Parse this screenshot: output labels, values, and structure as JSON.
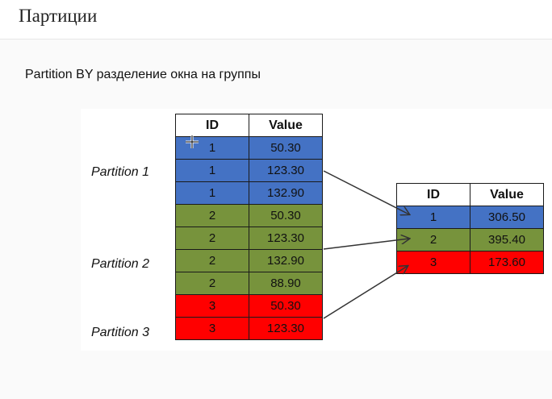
{
  "header": {
    "title": "Партиции"
  },
  "subtitle": "Partition BY разделение окна на группы",
  "partition_labels": [
    "Partition 1",
    "Partition 2",
    "Partition 3"
  ],
  "colors": {
    "partition1": "#4472c4",
    "partition2": "#77933c",
    "partition3": "#ff0000"
  },
  "left_table": {
    "headers": [
      "ID",
      "Value"
    ],
    "rows": [
      {
        "id": "1",
        "value": "50.30"
      },
      {
        "id": "1",
        "value": "123.30"
      },
      {
        "id": "1",
        "value": "132.90"
      },
      {
        "id": "2",
        "value": "50.30"
      },
      {
        "id": "2",
        "value": "123.30"
      },
      {
        "id": "2",
        "value": "132.90"
      },
      {
        "id": "2",
        "value": "88.90"
      },
      {
        "id": "3",
        "value": "50.30"
      },
      {
        "id": "3",
        "value": "123.30"
      }
    ]
  },
  "right_table": {
    "headers": [
      "ID",
      "Value"
    ],
    "rows": [
      {
        "id": "1",
        "value": "306.50"
      },
      {
        "id": "2",
        "value": "395.40"
      },
      {
        "id": "3",
        "value": "173.60"
      }
    ]
  }
}
